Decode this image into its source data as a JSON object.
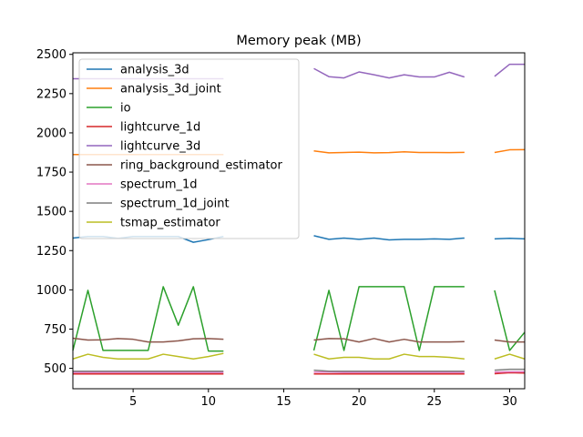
{
  "chart_data": {
    "type": "line",
    "title": "Memory peak (MB)",
    "xlabel": "",
    "ylabel": "",
    "xlim": [
      1,
      31
    ],
    "ylim": [
      370,
      2510
    ],
    "xticks": [
      5,
      10,
      15,
      20,
      25,
      30
    ],
    "yticks": [
      500,
      750,
      1000,
      1250,
      1500,
      1750,
      2000,
      2250,
      2500
    ],
    "grid": false,
    "legend_position": "upper-left",
    "series": [
      {
        "name": "analysis_3d",
        "color": "#1f77b4",
        "x": [
          1,
          2,
          3,
          4,
          5,
          6,
          7,
          8,
          9,
          10,
          11,
          null,
          17,
          18,
          19,
          20,
          21,
          22,
          23,
          24,
          25,
          26,
          27,
          null,
          29,
          30,
          31
        ],
        "values": [
          1330,
          1340,
          1340,
          1328,
          1340,
          1340,
          1340,
          1340,
          1303,
          1320,
          1340,
          null,
          1345,
          1322,
          1330,
          1322,
          1330,
          1318,
          1322,
          1322,
          1325,
          1322,
          1330,
          null,
          1325,
          1328,
          1325
        ]
      },
      {
        "name": "analysis_3d_joint",
        "color": "#ff7f0e",
        "x": [
          1,
          2,
          3,
          4,
          5,
          6,
          7,
          8,
          9,
          10,
          11,
          null,
          17,
          18,
          19,
          20,
          21,
          22,
          23,
          24,
          25,
          26,
          27,
          null,
          29,
          30,
          31
        ],
        "values": [
          1862,
          1862,
          1862,
          1862,
          1862,
          1862,
          1862,
          1862,
          1862,
          1862,
          1862,
          null,
          1885,
          1873,
          1875,
          1877,
          1873,
          1874,
          1879,
          1875,
          1875,
          1874,
          1876,
          null,
          1875,
          1892,
          1893
        ]
      },
      {
        "name": "io",
        "color": "#2ca02c",
        "x": [
          1,
          2,
          3,
          4,
          5,
          6,
          7,
          8,
          9,
          10,
          11,
          null,
          17,
          18,
          19,
          20,
          21,
          22,
          23,
          24,
          25,
          26,
          27,
          null,
          29,
          30,
          31
        ],
        "values": [
          614,
          997,
          614,
          614,
          614,
          614,
          1020,
          775,
          1020,
          610,
          610,
          null,
          614,
          997,
          614,
          1020,
          1020,
          1020,
          1020,
          614,
          1020,
          1020,
          1020,
          null,
          997,
          614,
          730
        ]
      },
      {
        "name": "lightcurve_1d",
        "color": "#d62728",
        "x": [
          1,
          2,
          3,
          4,
          5,
          6,
          7,
          8,
          9,
          10,
          11,
          null,
          17,
          18,
          19,
          20,
          21,
          22,
          23,
          24,
          25,
          26,
          27,
          null,
          29,
          30,
          31
        ],
        "values": [
          464,
          464,
          464,
          464,
          464,
          464,
          464,
          464,
          464,
          464,
          464,
          null,
          464,
          464,
          464,
          464,
          464,
          464,
          464,
          464,
          464,
          464,
          464,
          null,
          466,
          472,
          470
        ]
      },
      {
        "name": "lightcurve_3d",
        "color": "#9467bd",
        "x": [
          1,
          2,
          3,
          4,
          5,
          6,
          7,
          8,
          9,
          10,
          11,
          null,
          17,
          18,
          19,
          20,
          21,
          22,
          23,
          24,
          25,
          26,
          27,
          null,
          29,
          30,
          31
        ],
        "values": [
          2345,
          2345,
          2345,
          2345,
          2345,
          2345,
          2345,
          2345,
          2345,
          2345,
          2345,
          null,
          2410,
          2358,
          2350,
          2388,
          2370,
          2350,
          2370,
          2356,
          2356,
          2386,
          2356,
          null,
          2360,
          2437,
          2437
        ]
      },
      {
        "name": "ring_background_estimator",
        "color": "#8c564b",
        "x": [
          1,
          2,
          3,
          4,
          5,
          6,
          7,
          8,
          9,
          10,
          11,
          null,
          17,
          18,
          19,
          20,
          21,
          22,
          23,
          24,
          25,
          26,
          27,
          null,
          29,
          30,
          31
        ],
        "values": [
          692,
          680,
          682,
          690,
          685,
          668,
          668,
          675,
          688,
          690,
          685,
          null,
          680,
          690,
          688,
          668,
          690,
          668,
          685,
          668,
          668,
          668,
          670,
          null,
          680,
          668,
          668
        ]
      },
      {
        "name": "spectrum_1d",
        "color": "#e377c2",
        "x": [
          1,
          2,
          3,
          4,
          5,
          6,
          7,
          8,
          9,
          10,
          11,
          null,
          17,
          18,
          19,
          20,
          21,
          22,
          23,
          24,
          25,
          26,
          27,
          null,
          29,
          30,
          31
        ],
        "values": [
          474,
          474,
          474,
          474,
          474,
          474,
          474,
          474,
          474,
          474,
          474,
          null,
          476,
          476,
          474,
          474,
          474,
          474,
          474,
          474,
          474,
          474,
          474,
          null,
          476,
          478,
          478
        ]
      },
      {
        "name": "spectrum_1d_joint",
        "color": "#7f7f7f",
        "x": [
          1,
          2,
          3,
          4,
          5,
          6,
          7,
          8,
          9,
          10,
          11,
          null,
          17,
          18,
          19,
          20,
          21,
          22,
          23,
          24,
          25,
          26,
          27,
          null,
          29,
          30,
          31
        ],
        "values": [
          482,
          482,
          482,
          482,
          482,
          482,
          482,
          482,
          482,
          482,
          482,
          null,
          488,
          482,
          482,
          482,
          482,
          482,
          482,
          482,
          482,
          482,
          482,
          null,
          488,
          494,
          494
        ]
      },
      {
        "name": "tsmap_estimator",
        "color": "#bcbd22",
        "x": [
          1,
          2,
          3,
          4,
          5,
          6,
          7,
          8,
          9,
          10,
          11,
          null,
          17,
          18,
          19,
          20,
          21,
          22,
          23,
          24,
          25,
          26,
          27,
          null,
          29,
          30,
          31
        ],
        "values": [
          560,
          590,
          570,
          560,
          560,
          560,
          590,
          575,
          560,
          575,
          595,
          null,
          590,
          560,
          570,
          570,
          560,
          560,
          590,
          575,
          575,
          570,
          560,
          null,
          560,
          590,
          560
        ]
      }
    ]
  }
}
